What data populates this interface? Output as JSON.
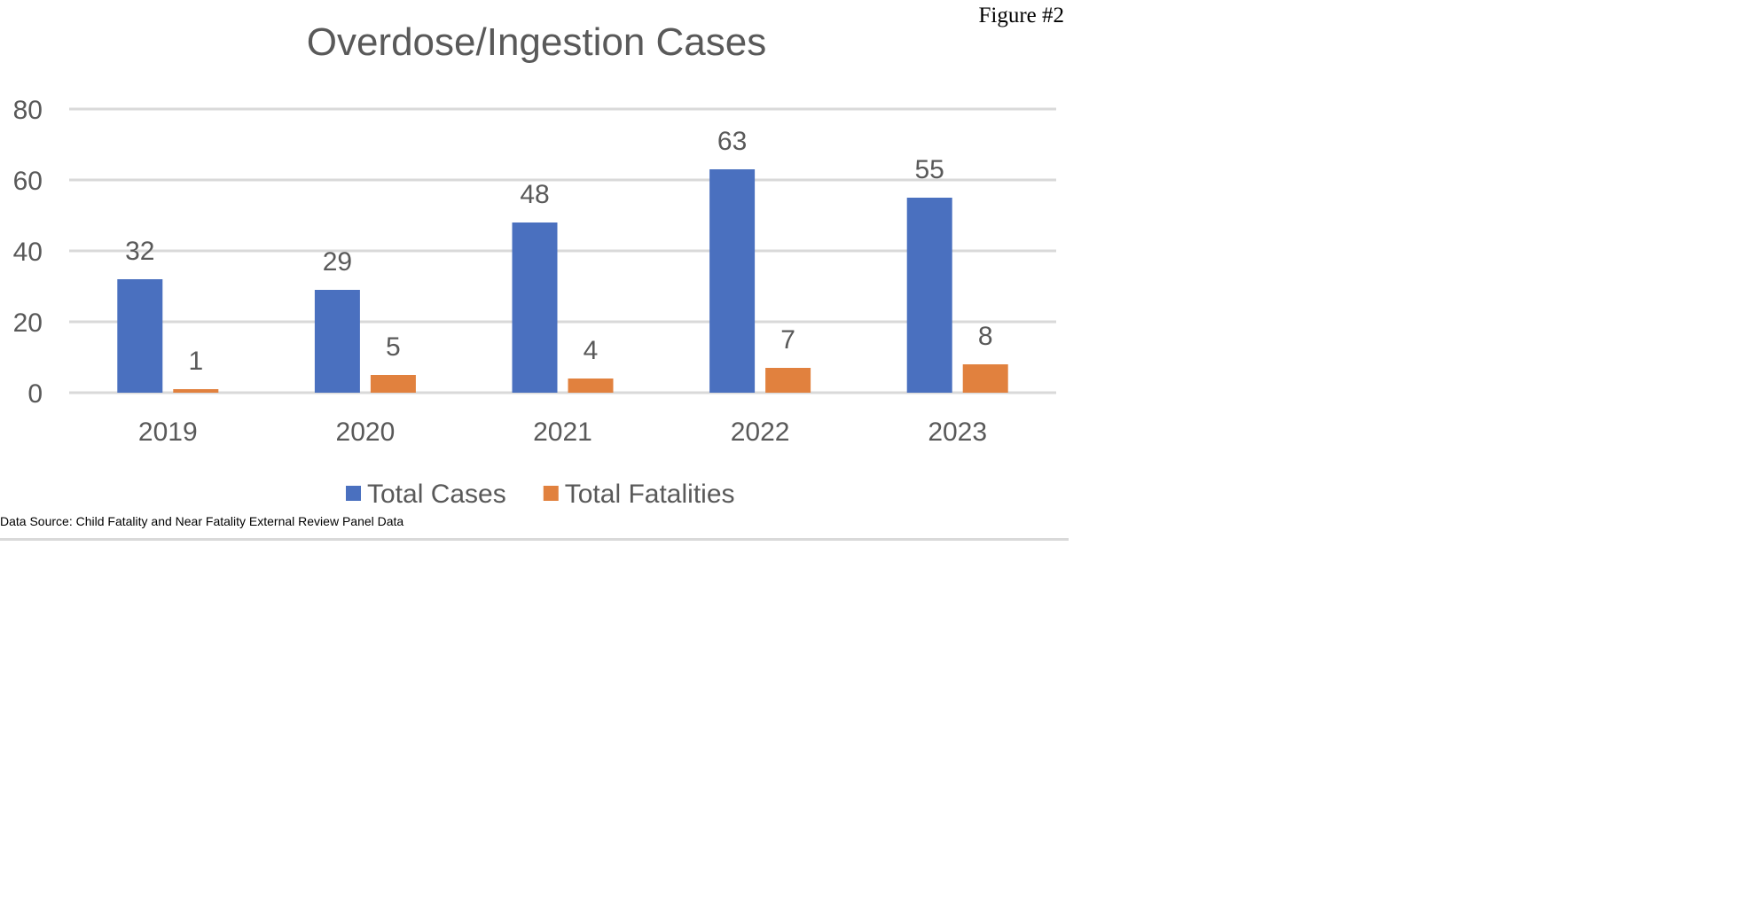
{
  "figure_label": "Figure #2",
  "source_note": "Data Source: Child Fatality and Near Fatality External Review Panel Data",
  "chart_data": {
    "type": "bar",
    "title": "Overdose/Ingestion Cases",
    "xlabel": "",
    "ylabel": "",
    "categories": [
      "2019",
      "2020",
      "2021",
      "2022",
      "2023"
    ],
    "series": [
      {
        "name": "Total Cases",
        "color": "#4a70bf",
        "values": [
          32,
          29,
          48,
          63,
          55
        ]
      },
      {
        "name": "Total Fatalities",
        "color": "#e1813e",
        "values": [
          1,
          5,
          4,
          7,
          8
        ]
      }
    ],
    "ylim": [
      0,
      80
    ],
    "yticks": [
      "0",
      "20",
      "40",
      "60",
      "80"
    ],
    "grid": true,
    "legend": "bottom",
    "data_labels": true
  }
}
